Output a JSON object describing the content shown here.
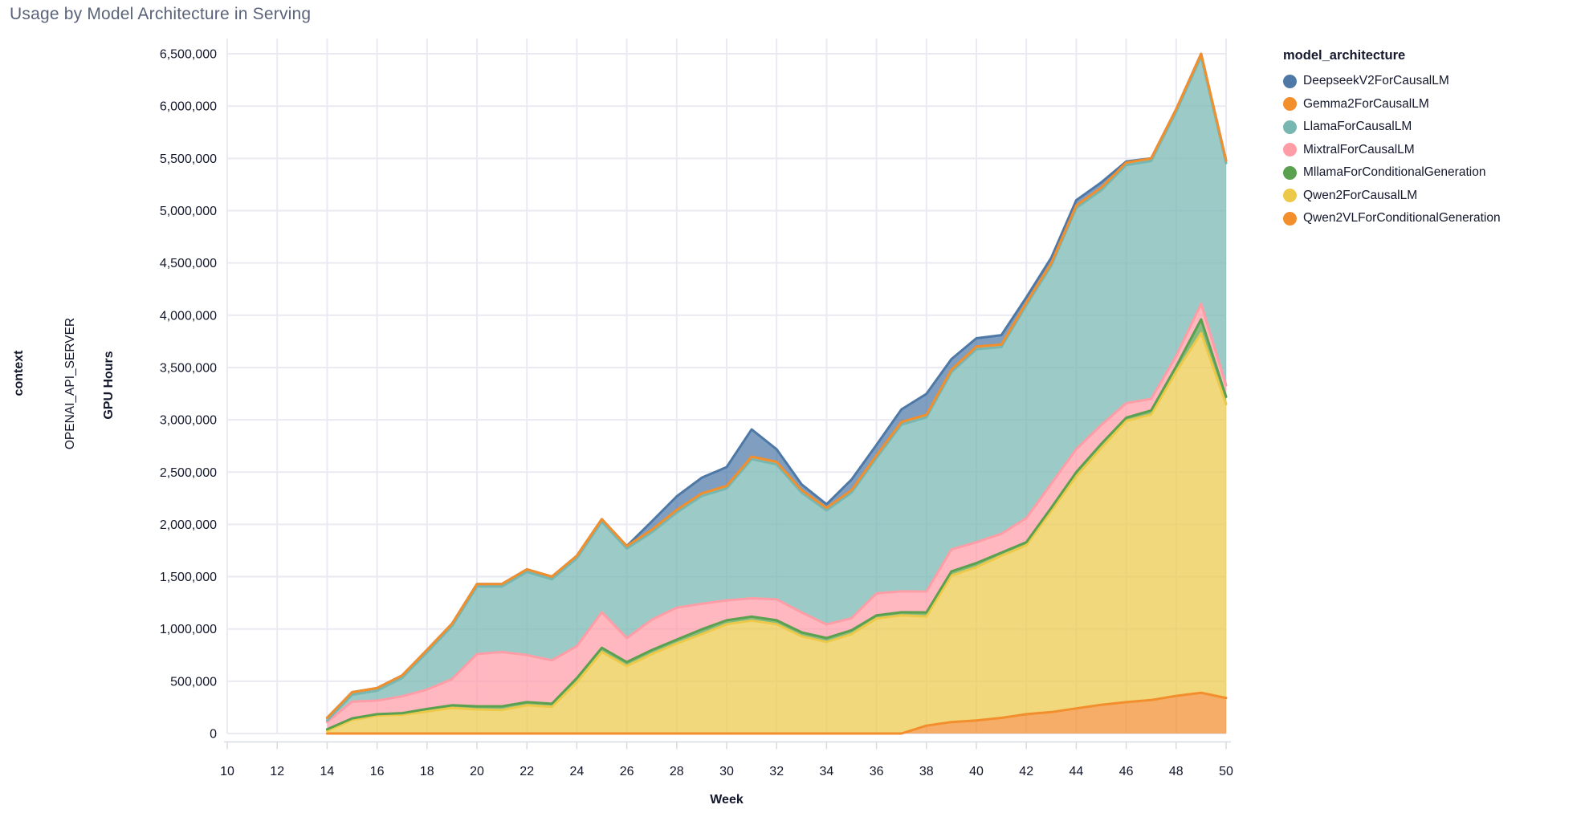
{
  "title": "Usage by Model Architecture in Serving",
  "facet_row_label": "context",
  "facet_row_value": "OPENAI_API_SERVER",
  "legend": {
    "title": "model_architecture",
    "position": "right",
    "items": [
      {
        "label": "DeepseekV2ForCausalLM",
        "color": "#4e79a7"
      },
      {
        "label": "Gemma2ForCausalLM",
        "color": "#f28e2c"
      },
      {
        "label": "LlamaForCausalLM",
        "color": "#76b7b2"
      },
      {
        "label": "MixtralForCausalLM",
        "color": "#ff9da7"
      },
      {
        "label": "MllamaForConditionalGeneration",
        "color": "#59a14f"
      },
      {
        "label": "Qwen2ForCausalLM",
        "color": "#edc949"
      },
      {
        "label": "Qwen2VLForConditionalGeneration",
        "color": "#f28e2c"
      }
    ]
  },
  "chart_data": {
    "type": "area",
    "stacked": true,
    "title": "Usage by Model Architecture in Serving",
    "xlabel": "Week",
    "ylabel": "GPU Hours",
    "grid": true,
    "legend_position": "right",
    "xlim": [
      10,
      50
    ],
    "ylim": [
      0,
      6500000
    ],
    "x_ticks": [
      10,
      12,
      14,
      16,
      18,
      20,
      22,
      24,
      26,
      28,
      30,
      32,
      34,
      36,
      38,
      40,
      42,
      44,
      46,
      48,
      50
    ],
    "y_tick_step": 500000,
    "x": [
      14,
      15,
      16,
      17,
      18,
      19,
      20,
      21,
      22,
      23,
      24,
      25,
      26,
      27,
      28,
      29,
      30,
      31,
      32,
      33,
      34,
      35,
      36,
      37,
      38,
      39,
      40,
      41,
      42,
      43,
      44,
      45,
      46,
      47,
      48,
      49,
      50
    ],
    "stack_order_bottom_to_top": [
      "Qwen2VLForConditionalGeneration",
      "Qwen2ForCausalLM",
      "MllamaForConditionalGeneration",
      "MixtralForCausalLM",
      "LlamaForCausalLM",
      "Gemma2ForCausalLM",
      "DeepseekV2ForCausalLM"
    ],
    "series": [
      {
        "name": "Qwen2VLForConditionalGeneration",
        "color": "#f28e2c",
        "values": [
          0,
          0,
          0,
          0,
          0,
          0,
          0,
          0,
          0,
          0,
          0,
          0,
          0,
          0,
          0,
          0,
          0,
          0,
          0,
          0,
          0,
          0,
          0,
          0,
          75000,
          110000,
          125000,
          150000,
          185000,
          205000,
          240000,
          275000,
          300000,
          320000,
          360000,
          390000,
          340000
        ]
      },
      {
        "name": "Qwen2ForCausalLM",
        "color": "#edc949",
        "values": [
          25000,
          130000,
          170000,
          180000,
          210000,
          245000,
          230000,
          225000,
          270000,
          255000,
          490000,
          780000,
          645000,
          760000,
          860000,
          950000,
          1045000,
          1080000,
          1045000,
          930000,
          875000,
          950000,
          1100000,
          1130000,
          1045000,
          1400000,
          1465000,
          1550000,
          1615000,
          1925000,
          2220000,
          2455000,
          2690000,
          2730000,
          3100000,
          3440000,
          2810000
        ]
      },
      {
        "name": "MllamaForConditionalGeneration",
        "color": "#59a14f",
        "values": [
          15000,
          15000,
          15000,
          15000,
          25000,
          25000,
          30000,
          35000,
          30000,
          30000,
          40000,
          40000,
          38000,
          38000,
          38000,
          46000,
          38000,
          38000,
          38000,
          38000,
          38000,
          38000,
          30000,
          30000,
          38000,
          40000,
          40000,
          30000,
          30000,
          30000,
          40000,
          40000,
          30000,
          40000,
          50000,
          130000,
          70000
        ]
      },
      {
        "name": "MixtralForCausalLM",
        "color": "#ff9da7",
        "values": [
          70000,
          160000,
          130000,
          160000,
          185000,
          250000,
          500000,
          520000,
          450000,
          415000,
          305000,
          340000,
          230000,
          290000,
          305000,
          245000,
          190000,
          175000,
          200000,
          190000,
          130000,
          115000,
          210000,
          200000,
          200000,
          210000,
          200000,
          180000,
          230000,
          230000,
          220000,
          180000,
          140000,
          110000,
          100000,
          150000,
          110000
        ]
      },
      {
        "name": "LlamaForCausalLM",
        "color": "#76b7b2",
        "values": [
          15000,
          65000,
          95000,
          175000,
          355000,
          505000,
          645000,
          625000,
          795000,
          775000,
          840000,
          865000,
          855000,
          835000,
          910000,
          1030000,
          1070000,
          1330000,
          1290000,
          1145000,
          1090000,
          1200000,
          1295000,
          1595000,
          1665000,
          1695000,
          1845000,
          1785000,
          2035000,
          2085000,
          2305000,
          2245000,
          2275000,
          2275000,
          2335000,
          2365000,
          2125000
        ]
      },
      {
        "name": "Gemma2ForCausalLM",
        "color": "#f28e2c",
        "values": [
          25000,
          25000,
          25000,
          25000,
          25000,
          25000,
          25000,
          25000,
          25000,
          25000,
          25000,
          25000,
          25000,
          25000,
          25000,
          25000,
          25000,
          25000,
          25000,
          25000,
          25000,
          25000,
          25000,
          25000,
          25000,
          25000,
          25000,
          25000,
          25000,
          25000,
          25000,
          25000,
          25000,
          25000,
          25000,
          25000,
          25000
        ]
      },
      {
        "name": "DeepseekV2ForCausalLM",
        "color": "#4e79a7",
        "values": [
          0,
          0,
          0,
          0,
          0,
          0,
          0,
          0,
          0,
          0,
          0,
          0,
          0,
          80000,
          130000,
          150000,
          180000,
          260000,
          120000,
          55000,
          35000,
          100000,
          100000,
          120000,
          200000,
          100000,
          80000,
          90000,
          50000,
          50000,
          50000,
          50000,
          10000,
          0,
          0,
          0,
          0
        ]
      }
    ]
  },
  "style_colors": {
    "grid": "#e9eaf2",
    "axis_domain": "#d8dae2",
    "tick_label": "#13172b",
    "title": "#5a637a",
    "area_fill_opacity": 0.72
  }
}
